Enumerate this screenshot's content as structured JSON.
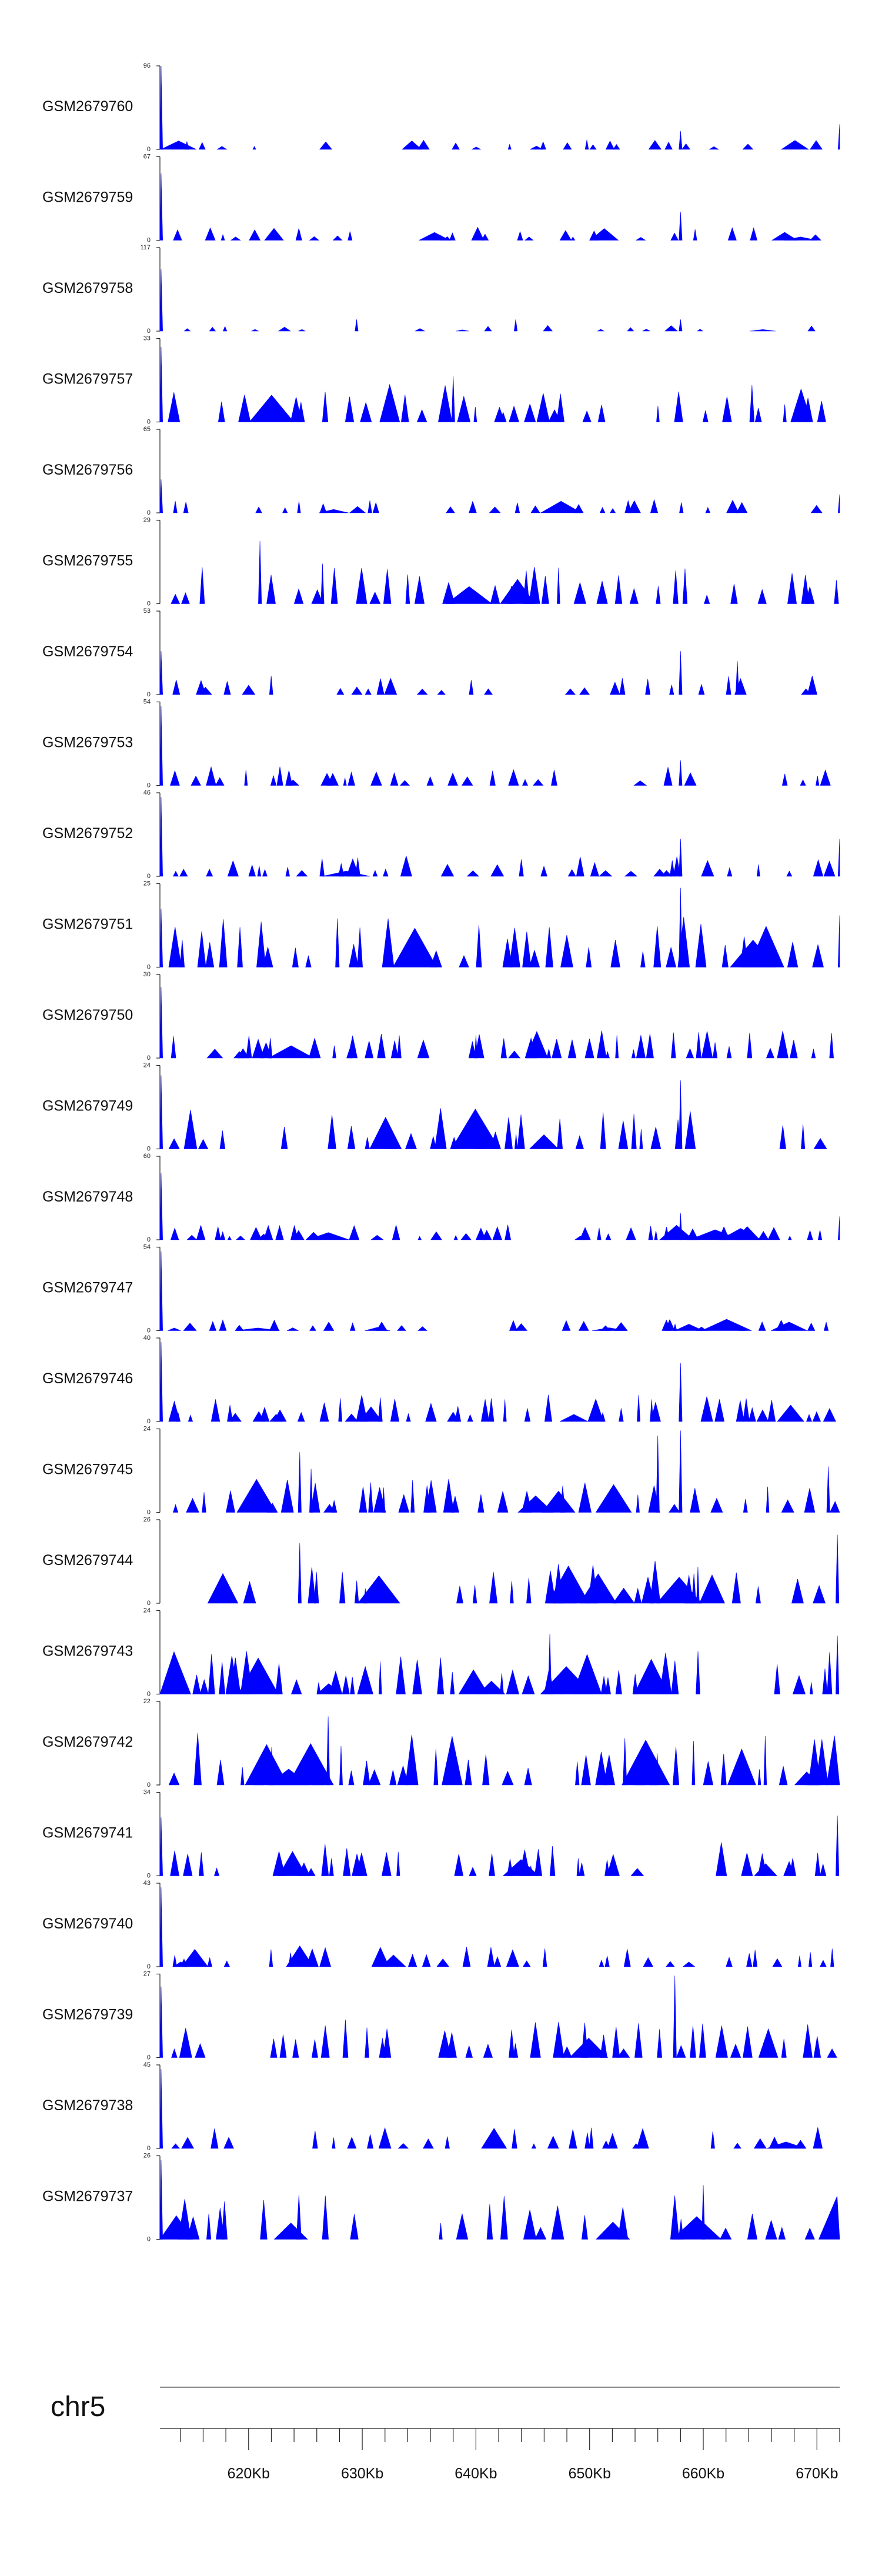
{
  "chart_data": {
    "type": "area",
    "title": "",
    "colors": {
      "signal": "#0000ff",
      "axis": "#222222",
      "chrom_line": "#888888"
    },
    "chromosome": "chr5",
    "x_range_kb": [
      612.2,
      672.0
    ],
    "x_ticks": [
      {
        "value": 620,
        "label": "620Kb"
      },
      {
        "value": 630,
        "label": "630Kb"
      },
      {
        "value": 640,
        "label": "640Kb"
      },
      {
        "value": 650,
        "label": "650Kb"
      },
      {
        "value": 660,
        "label": "660Kb"
      },
      {
        "value": 670,
        "label": "670Kb"
      }
    ],
    "minor_tick_step_kb": 2,
    "tracks": [
      {
        "name": "GSM2679760",
        "ymax": 96,
        "ymin": 0,
        "seed": 11,
        "density": 0.55,
        "base": 0.1,
        "spikes": [
          [
            612.3,
            1.0
          ],
          [
            658.0,
            0.22
          ],
          [
            672.0,
            0.3
          ]
        ]
      },
      {
        "name": "GSM2679759",
        "ymax": 67,
        "ymin": 0,
        "seed": 23,
        "density": 0.6,
        "base": 0.14,
        "spikes": [
          [
            612.3,
            0.8
          ],
          [
            658.0,
            0.34
          ]
        ]
      },
      {
        "name": "GSM2679758",
        "ymax": 117,
        "ymin": 0,
        "seed": 37,
        "density": 0.35,
        "base": 0.06,
        "spikes": [
          [
            612.3,
            0.74
          ],
          [
            629.5,
            0.14
          ],
          [
            643.5,
            0.14
          ],
          [
            658.0,
            0.14
          ]
        ]
      },
      {
        "name": "GSM2679757",
        "ymax": 33,
        "ymin": 0,
        "seed": 41,
        "density": 0.85,
        "base": 0.4,
        "spikes": [
          [
            612.3,
            0.9
          ],
          [
            638.0,
            0.55
          ]
        ]
      },
      {
        "name": "GSM2679756",
        "ymax": 65,
        "ymin": 0,
        "seed": 53,
        "density": 0.75,
        "base": 0.16,
        "spikes": [
          [
            612.3,
            0.4
          ],
          [
            672.0,
            0.22
          ]
        ]
      },
      {
        "name": "GSM2679755",
        "ymax": 29,
        "ymin": 0,
        "seed": 61,
        "density": 0.75,
        "base": 0.4,
        "spikes": [
          [
            621.0,
            0.75
          ],
          [
            626.5,
            0.48
          ]
        ]
      },
      {
        "name": "GSM2679754",
        "ymax": 53,
        "ymin": 0,
        "seed": 71,
        "density": 0.7,
        "base": 0.2,
        "spikes": [
          [
            612.3,
            0.52
          ],
          [
            658.0,
            0.52
          ],
          [
            663.0,
            0.4
          ]
        ]
      },
      {
        "name": "GSM2679753",
        "ymax": 54,
        "ymin": 0,
        "seed": 83,
        "density": 0.8,
        "base": 0.2,
        "spikes": [
          [
            612.3,
            0.95
          ],
          [
            658.0,
            0.3
          ]
        ]
      },
      {
        "name": "GSM2679752",
        "ymax": 46,
        "ymin": 0,
        "seed": 97,
        "density": 0.75,
        "base": 0.22,
        "spikes": [
          [
            612.3,
            0.95
          ],
          [
            658.0,
            0.45
          ],
          [
            672.0,
            0.45
          ]
        ]
      },
      {
        "name": "GSM2679751",
        "ymax": 25,
        "ymin": 0,
        "seed": 101,
        "density": 0.8,
        "base": 0.55,
        "spikes": [
          [
            612.3,
            0.7
          ],
          [
            658.0,
            0.95
          ],
          [
            672.0,
            0.62
          ]
        ]
      },
      {
        "name": "GSM2679750",
        "ymax": 30,
        "ymin": 0,
        "seed": 113,
        "density": 0.95,
        "base": 0.3,
        "spikes": [
          [
            612.3,
            0.85
          ]
        ]
      },
      {
        "name": "GSM2679749",
        "ymax": 24,
        "ymin": 0,
        "seed": 127,
        "density": 0.9,
        "base": 0.45,
        "spikes": [
          [
            612.3,
            0.88
          ],
          [
            658.0,
            0.82
          ]
        ]
      },
      {
        "name": "GSM2679748",
        "ymax": 60,
        "ymin": 0,
        "seed": 131,
        "density": 0.85,
        "base": 0.16,
        "spikes": [
          [
            612.3,
            0.8
          ],
          [
            658.0,
            0.32
          ],
          [
            672.0,
            0.28
          ]
        ]
      },
      {
        "name": "GSM2679747",
        "ymax": 54,
        "ymin": 0,
        "seed": 139,
        "density": 0.9,
        "base": 0.12,
        "spikes": [
          [
            612.3,
            0.95
          ]
        ]
      },
      {
        "name": "GSM2679746",
        "ymax": 40,
        "ymin": 0,
        "seed": 149,
        "density": 0.9,
        "base": 0.28,
        "spikes": [
          [
            612.3,
            0.95
          ],
          [
            658.0,
            0.7
          ]
        ]
      },
      {
        "name": "GSM2679745",
        "ymax": 24,
        "ymin": 0,
        "seed": 151,
        "density": 0.8,
        "base": 0.35,
        "spikes": [
          [
            624.5,
            0.72
          ],
          [
            625.5,
            0.52
          ],
          [
            656.0,
            0.92
          ],
          [
            658.0,
            0.98
          ],
          [
            671.0,
            0.55
          ]
        ]
      },
      {
        "name": "GSM2679744",
        "ymax": 26,
        "ymin": 0,
        "seed": 163,
        "density": 0.85,
        "base": 0.45,
        "spikes": [
          [
            624.5,
            0.72
          ],
          [
            671.8,
            0.82
          ]
        ]
      },
      {
        "name": "GSM2679743",
        "ymax": 24,
        "ymin": 0,
        "seed": 173,
        "density": 0.95,
        "base": 0.45,
        "spikes": [
          [
            646.5,
            0.72
          ],
          [
            671.8,
            0.7
          ]
        ]
      },
      {
        "name": "GSM2679742",
        "ymax": 22,
        "ymin": 0,
        "seed": 181,
        "density": 0.95,
        "base": 0.55,
        "spikes": [
          [
            627.0,
            0.82
          ]
        ]
      },
      {
        "name": "GSM2679741",
        "ymax": 34,
        "ymin": 0,
        "seed": 191,
        "density": 0.9,
        "base": 0.35,
        "spikes": [
          [
            612.3,
            0.7
          ],
          [
            671.8,
            0.72
          ]
        ]
      },
      {
        "name": "GSM2679740",
        "ymax": 43,
        "ymin": 0,
        "seed": 199,
        "density": 0.9,
        "base": 0.22,
        "spikes": [
          [
            612.3,
            0.95
          ]
        ]
      },
      {
        "name": "GSM2679739",
        "ymax": 27,
        "ymin": 0,
        "seed": 211,
        "density": 0.95,
        "base": 0.4,
        "spikes": [
          [
            612.3,
            0.85
          ],
          [
            657.5,
            0.98
          ]
        ]
      },
      {
        "name": "GSM2679738",
        "ymax": 45,
        "ymin": 0,
        "seed": 223,
        "density": 0.85,
        "base": 0.22,
        "spikes": [
          [
            612.3,
            0.95
          ]
        ]
      },
      {
        "name": "GSM2679737",
        "ymax": 26,
        "ymin": 0,
        "seed": 227,
        "density": 0.8,
        "base": 0.5,
        "spikes": [
          [
            612.3,
            0.95
          ],
          [
            660.0,
            0.65
          ]
        ]
      }
    ]
  }
}
